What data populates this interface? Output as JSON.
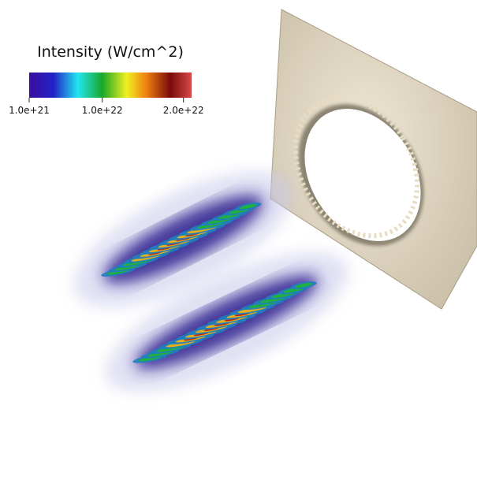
{
  "colorbar": {
    "title": "Intensity (W/cm^2)",
    "range": [
      1e+21,
      2.1e+22
    ],
    "ticks": [
      {
        "value": 1e+21,
        "label": "1.0e+21"
      },
      {
        "value": 1e+22,
        "label": "1.0e+22"
      },
      {
        "value": 2e+22,
        "label": "2.0e+22"
      }
    ]
  }
}
